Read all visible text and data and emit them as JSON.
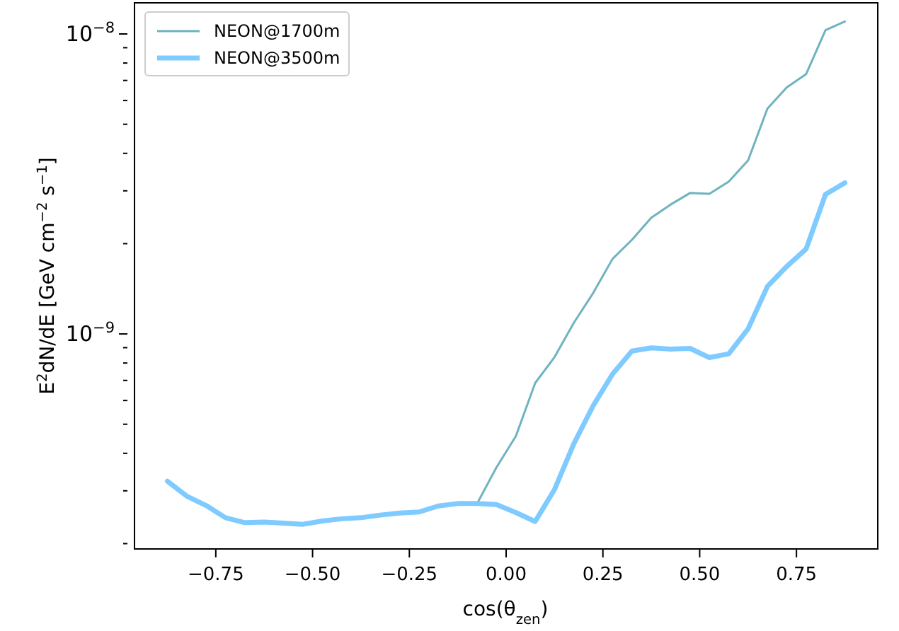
{
  "chart_data": {
    "type": "line",
    "xlabel": "cos(θ$_{zen}$)",
    "ylabel": "E$^{2}$dN/dE  [GeV cm$^{−2}$ s$^{−1}$]",
    "x": [
      -0.875,
      -0.825,
      -0.775,
      -0.725,
      -0.675,
      -0.625,
      -0.575,
      -0.525,
      -0.475,
      -0.425,
      -0.375,
      -0.325,
      -0.275,
      -0.225,
      -0.175,
      -0.125,
      -0.075,
      -0.025,
      0.025,
      0.075,
      0.125,
      0.175,
      0.225,
      0.275,
      0.325,
      0.375,
      0.425,
      0.475,
      0.525,
      0.575,
      0.625,
      0.675,
      0.725,
      0.775,
      0.825,
      0.875
    ],
    "series": [
      {
        "name": "NEON@1700m",
        "color": "#6fb3c0",
        "values": [
          null,
          null,
          null,
          null,
          null,
          null,
          null,
          null,
          null,
          null,
          null,
          null,
          null,
          null,
          null,
          2.72e-10,
          2.72e-10,
          3.59e-10,
          4.56e-10,
          6.86e-10,
          8.37e-10,
          1.09e-09,
          1.37e-09,
          1.78e-09,
          2.06e-09,
          2.44e-09,
          2.7e-09,
          2.95e-09,
          2.93e-09,
          3.22e-09,
          3.79e-09,
          5.64e-09,
          6.64e-09,
          7.35e-09,
          1.03e-08,
          1.1e-08
        ]
      },
      {
        "name": "NEON@3500m",
        "color": "#7fcbff",
        "values": [
          3.23e-10,
          2.88e-10,
          2.68e-10,
          2.44e-10,
          2.35e-10,
          2.36e-10,
          2.34e-10,
          2.32e-10,
          2.38e-10,
          2.42e-10,
          2.44e-10,
          2.49e-10,
          2.53e-10,
          2.55e-10,
          2.67e-10,
          2.72e-10,
          2.72e-10,
          2.7e-10,
          2.54e-10,
          2.37e-10,
          3.03e-10,
          4.31e-10,
          5.77e-10,
          7.35e-10,
          8.77e-10,
          8.99e-10,
          8.9e-10,
          8.95e-10,
          8.34e-10,
          8.59e-10,
          1.04e-09,
          1.44e-09,
          1.68e-09,
          1.92e-09,
          2.92e-09,
          3.19e-09
        ]
      }
    ],
    "log": "y",
    "xlim": [
      -0.96,
      0.96
    ],
    "xticks": [
      {
        "value": -0.75,
        "label": "−0.75"
      },
      {
        "value": -0.5,
        "label": "−0.50"
      },
      {
        "value": -0.25,
        "label": "−0.25"
      },
      {
        "value": 0,
        "label": "0.00"
      },
      {
        "value": 0.25,
        "label": "0.25"
      },
      {
        "value": 0.5,
        "label": "0.50"
      },
      {
        "value": 0.75,
        "label": "0.75"
      }
    ],
    "ylim": [
      1.92e-10,
      1.27e-08
    ],
    "yticks": [
      {
        "value": 2e-10,
        "label": null
      },
      {
        "value": 3e-10,
        "label": null
      },
      {
        "value": 4e-10,
        "label": null
      },
      {
        "value": 5e-10,
        "label": null
      },
      {
        "value": 6e-10,
        "label": null
      },
      {
        "value": 7e-10,
        "label": null
      },
      {
        "value": 8e-10,
        "label": null
      },
      {
        "value": 9e-10,
        "label": null
      },
      {
        "value": 1e-09,
        "label": "10$^{−9}$"
      },
      {
        "value": 2e-09,
        "label": null
      },
      {
        "value": 3e-09,
        "label": null
      },
      {
        "value": 4e-09,
        "label": null
      },
      {
        "value": 5e-09,
        "label": null
      },
      {
        "value": 6e-09,
        "label": null
      },
      {
        "value": 7e-09,
        "label": null
      },
      {
        "value": 8e-09,
        "label": null
      },
      {
        "value": 9e-09,
        "label": null
      },
      {
        "value": 1e-08,
        "label": "10$^{−8}$"
      }
    ],
    "legend": "top left",
    "marker": "none",
    "line_style": "solid",
    "grid": false
  }
}
